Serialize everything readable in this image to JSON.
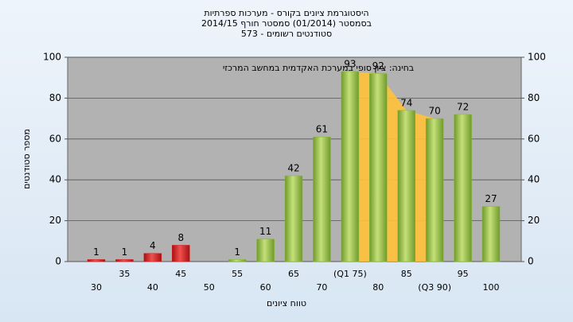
{
  "chart_data": {
    "type": "bar",
    "title": "היסטוגרמת ציונים בקורס - מערכות ספרתיות",
    "subtitle": [
      "בסמסטר  (01/2014)  סמסטר חורף 2014/15",
      "סטודנטים רשומים - 573"
    ],
    "annotation": "בחינה: ציון סופי במערכת האקדמית במחשב המרכזי",
    "x_label": "טווח ציונים",
    "y_label": "מספר סטודנטים",
    "categories": [
      "30",
      "35",
      "40",
      "45",
      "50",
      "55",
      "60",
      "65",
      "70",
      "(Q1 75)",
      "80",
      "85",
      "(Q3 90)",
      "95",
      "100"
    ],
    "values": [
      1,
      1,
      4,
      8,
      null,
      1,
      11,
      42,
      61,
      93,
      92,
      74,
      70,
      72,
      27
    ],
    "colors": [
      "#d02020",
      "#d02020",
      "#d02020",
      "#d02020",
      "#d02020",
      "#8ab83c",
      "#8ab83c",
      "#8ab83c",
      "#8ab83c",
      "#8ab83c",
      "#8ab83c",
      "#8ab83c",
      "#8ab83c",
      "#8ab83c",
      "#8ab83c"
    ],
    "ylim": [
      0,
      100
    ],
    "yticks": [
      0,
      20,
      40,
      60,
      80,
      100
    ],
    "y2lim": [
      0,
      100
    ],
    "y2ticks": [
      0,
      20,
      40,
      60,
      80,
      100
    ],
    "grid": true
  }
}
